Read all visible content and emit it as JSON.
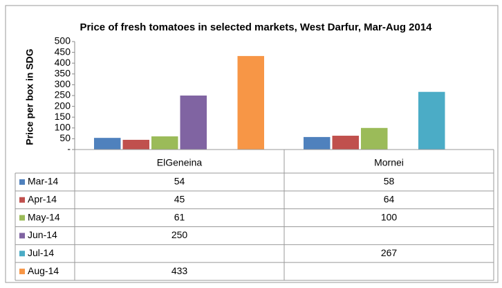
{
  "chart_data": {
    "type": "bar",
    "title": "Price of fresh tomatoes in selected markets, West Darfur, Mar-Aug 2014",
    "y_label": "Price per box in SDG",
    "categories": [
      "ElGeneina",
      "Mornei"
    ],
    "series": [
      {
        "name": "Mar-14",
        "color": "#4f81bd",
        "values": [
          54,
          58
        ]
      },
      {
        "name": "Apr-14",
        "color": "#c0504d",
        "values": [
          45,
          64
        ]
      },
      {
        "name": "May-14",
        "color": "#9bbb59",
        "values": [
          61,
          100
        ]
      },
      {
        "name": "Jun-14",
        "color": "#8064a2",
        "values": [
          250,
          null
        ]
      },
      {
        "name": "Jul-14",
        "color": "#4bacc6",
        "values": [
          null,
          267
        ]
      },
      {
        "name": "Aug-14",
        "color": "#f79646",
        "values": [
          433,
          null
        ]
      }
    ],
    "ylim": [
      0,
      500
    ],
    "yticks": [
      {
        "value": 0,
        "label": "-"
      },
      50,
      100,
      150,
      200,
      250,
      300,
      350,
      400,
      450,
      500
    ],
    "data_table": true
  }
}
